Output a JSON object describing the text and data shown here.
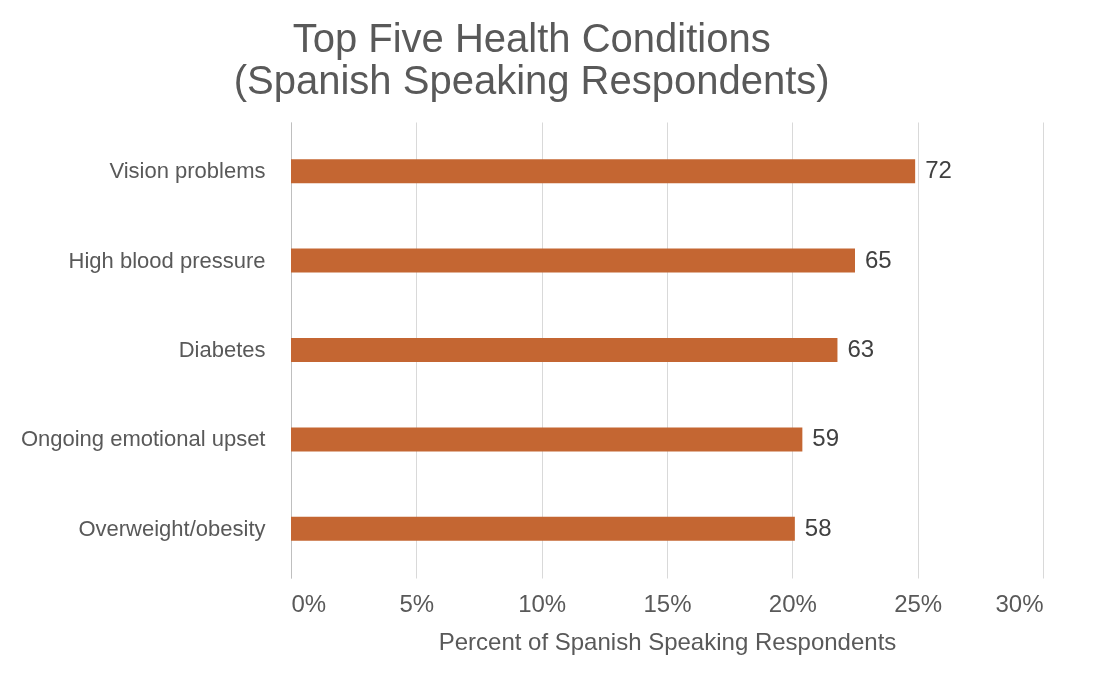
{
  "chart_data": {
    "type": "bar",
    "orientation": "horizontal",
    "title": [
      "Top Five Health Conditions",
      "(Spanish Speaking Respondents)"
    ],
    "xlabel": "Percent of Spanish Speaking Respondents",
    "categories": [
      "Vision problems",
      "High blood pressure",
      "Diabetes",
      "Ongoing emotional upset",
      "Overweight/obesity"
    ],
    "values": [
      24.9,
      22.5,
      21.8,
      20.4,
      20.1
    ],
    "annotations": [
      {
        "text": "72",
        "x": 24.9,
        "y": "Vision problems"
      },
      {
        "text": "65",
        "x": 22.5,
        "y": "High blood pressure"
      },
      {
        "text": "63",
        "x": 21.8,
        "y": "Diabetes"
      },
      {
        "text": "59",
        "x": 20.4,
        "y": "Ongoing emotional upset"
      },
      {
        "text": "58",
        "x": 20.1,
        "y": "Overweight/obesity"
      }
    ],
    "color": "#c46632",
    "xlim": [
      0,
      30
    ],
    "xticks": [
      {
        "value": 0,
        "label": "0%"
      },
      {
        "value": 5,
        "label": "5%"
      },
      {
        "value": 10,
        "label": "10%"
      },
      {
        "value": 15,
        "label": "15%"
      },
      {
        "value": 20,
        "label": "20%"
      },
      {
        "value": 25,
        "label": "25%"
      },
      {
        "value": 30,
        "label": "30%"
      }
    ],
    "grid": "x"
  }
}
